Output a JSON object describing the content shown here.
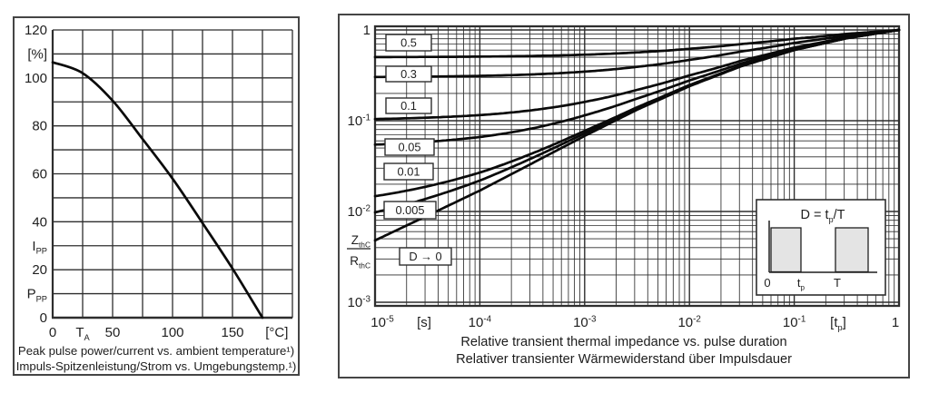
{
  "colors": {
    "ink": "#1f1f1f",
    "grid": "#2e2e2e",
    "curve": "#0a0a0a",
    "figure_border": "#454545",
    "label_box_fill": "#ffffff",
    "inset_pulse_fill": "#e4e4e4"
  },
  "left_figure": {
    "caption_en": "Peak pulse power/current vs. ambient temperature¹)",
    "caption_de": "Impuls-Spitzenleistung/Strom vs. Umgebungstemp.¹)"
  },
  "right_figure": {
    "caption_en": "Relative transient thermal impedance vs. pulse duration",
    "caption_de": "Relativer transienter Wärmewiderstand über Impulsdauer"
  },
  "chart_data": [
    {
      "id": "peak-pulse-derating",
      "type": "line",
      "title": "Peak pulse power/current vs. ambient temperature",
      "grid": "on",
      "x_axis": {
        "quantity": "T_{A}",
        "unit": "[°C]",
        "min": 0,
        "max": 200,
        "grid_step": 25,
        "tick_labels": [
          {
            "value": 0,
            "label": "0"
          },
          {
            "value": 25,
            "label": "T_{A}"
          },
          {
            "value": 50,
            "label": "50"
          },
          {
            "value": 100,
            "label": "100"
          },
          {
            "value": 150,
            "label": "150"
          },
          {
            "value": 187,
            "label": "[°C]"
          }
        ]
      },
      "y_axis": {
        "unit": "[%]",
        "min": 0,
        "max": 120,
        "grid_step": 10,
        "tick_labels": [
          {
            "value": 120,
            "label": "120"
          },
          {
            "value": 110,
            "label": "[%]"
          },
          {
            "value": 100,
            "label": "100"
          },
          {
            "value": 80,
            "label": "80"
          },
          {
            "value": 60,
            "label": "60"
          },
          {
            "value": 40,
            "label": "40"
          },
          {
            "value": 30,
            "label": "I_{PP}"
          },
          {
            "value": 20,
            "label": "20"
          },
          {
            "value": 10,
            "label": "P_{PP}"
          },
          {
            "value": 0,
            "label": "0"
          }
        ]
      },
      "series": [
        {
          "name": "derating-curve",
          "x": [
            0,
            25,
            50,
            75,
            100,
            125,
            150,
            175
          ],
          "y": [
            106.5,
            102.0,
            90.5,
            74.5,
            58.0,
            39.5,
            20.5,
            0.0
          ]
        }
      ]
    },
    {
      "id": "transient-thermal-impedance",
      "type": "line",
      "log_x": true,
      "log_y": true,
      "grid": "on",
      "x_axis": {
        "unit": "[s]",
        "unit_right": "[t_{p}]",
        "min": 1e-05,
        "max": 1,
        "tick_labels": [
          "10^{-5}",
          "[s]",
          "10^{-4}",
          "10^{-3}",
          "10^{-2}",
          "10^{-1}",
          "[t_{p}]",
          "1"
        ]
      },
      "y_axis": {
        "quantity_numerator": "Z_{thC}",
        "quantity_denominator": "R_{thC}",
        "min": 0.001,
        "max": 1,
        "tick_labels": [
          "1",
          "10^{-1}",
          "10^{-2}",
          "10^{-3}"
        ]
      },
      "single_pulse_reference": {
        "log10_t": [
          -5,
          -4.5,
          -4,
          -3.5,
          -3,
          -2.5,
          -2,
          -1.5,
          -1,
          -0.5,
          0
        ],
        "z": [
          0.0048,
          0.009,
          0.017,
          0.034,
          0.068,
          0.132,
          0.24,
          0.4,
          0.6,
          0.81,
          1.0
        ]
      },
      "series": [
        {
          "name": "0.5",
          "duty_cycle": 0.5,
          "t": [
            1e-05,
            0.0001,
            0.001,
            0.01,
            0.1,
            1
          ],
          "z": [
            0.502,
            0.509,
            0.534,
            0.62,
            0.8,
            1.0
          ]
        },
        {
          "name": "0.3",
          "duty_cycle": 0.3,
          "t": [
            1e-05,
            0.0001,
            0.001,
            0.01,
            0.1,
            1
          ],
          "z": [
            0.303,
            0.312,
            0.348,
            0.468,
            0.72,
            1.0
          ]
        },
        {
          "name": "0.1",
          "duty_cycle": 0.1,
          "t": [
            1e-05,
            0.0001,
            0.001,
            0.01,
            0.1,
            1
          ],
          "z": [
            0.104,
            0.115,
            0.161,
            0.316,
            0.64,
            1.0
          ]
        },
        {
          "name": "0.05",
          "duty_cycle": 0.05,
          "t": [
            1e-05,
            0.0001,
            0.001,
            0.01,
            0.1,
            1
          ],
          "z": [
            0.055,
            0.066,
            0.115,
            0.278,
            0.62,
            1.0
          ]
        },
        {
          "name": "0.01",
          "duty_cycle": 0.01,
          "t": [
            1e-05,
            0.0001,
            0.001,
            0.01,
            0.1,
            1
          ],
          "z": [
            0.0147,
            0.0268,
            0.077,
            0.248,
            0.604,
            1.0
          ]
        },
        {
          "name": "0.005",
          "duty_cycle": 0.005,
          "t": [
            1e-05,
            0.0001,
            0.001,
            0.01,
            0.1,
            1
          ],
          "z": [
            0.0098,
            0.022,
            0.073,
            0.239,
            0.598,
            1.0
          ]
        },
        {
          "name": "D → 0",
          "duty_cycle": 0,
          "t": [
            1e-05,
            0.0001,
            0.001,
            0.01,
            0.1,
            1
          ],
          "z": [
            0.0048,
            0.017,
            0.068,
            0.24,
            0.6,
            1.0
          ]
        }
      ],
      "inset": {
        "formula": "D = t_{p}/T",
        "waveform_axis_labels": [
          "0",
          "t_{p}",
          "T"
        ]
      }
    }
  ]
}
